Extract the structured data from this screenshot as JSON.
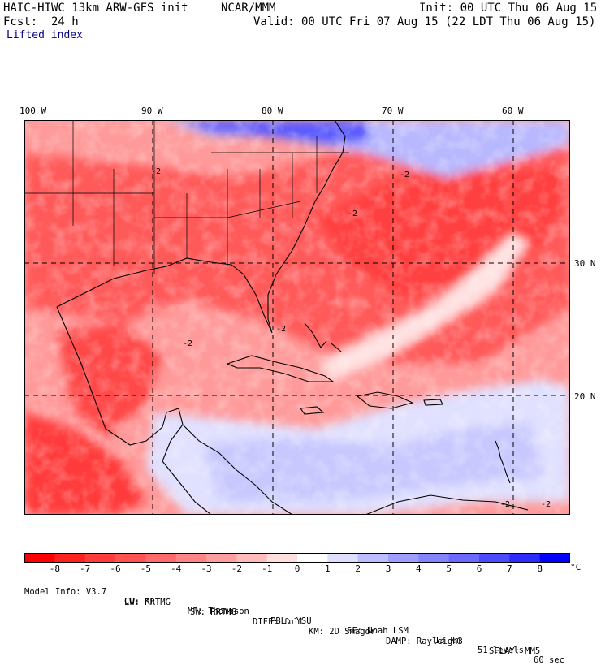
{
  "header": {
    "model": "HAIC-HIWC 13km ARW-GFS init",
    "org": "NCAR/MMM",
    "init": "Init: 00 UTC Thu 06 Aug 15",
    "fcst": "Fcst:  24 h",
    "valid": "Valid: 00 UTC Fri 07 Aug 15 (22 LDT Thu 06 Aug 15)",
    "field": "Lifted index"
  },
  "axes": {
    "lon_labels": [
      "100 W",
      "90 W",
      "80 W",
      "70 W",
      "60 W"
    ],
    "lat_labels": [
      "30 N",
      "20 N"
    ]
  },
  "contour_labels": [
    "-2",
    "-2",
    "-2",
    "-2",
    "-2",
    "-2",
    "-2"
  ],
  "colorbar": {
    "labels": [
      "-8",
      "-7",
      "-6",
      "-5",
      "-4",
      "-3",
      "-2",
      "-1",
      "0",
      "1",
      "2",
      "3",
      "4",
      "5",
      "6",
      "7",
      "8"
    ],
    "unit": "°C",
    "colors": [
      "#ff0000",
      "#ff2020",
      "#ff3c3c",
      "#ff5252",
      "#ff6a6a",
      "#ff8484",
      "#ff9e9e",
      "#ffbcbc",
      "#ffdede",
      "#ffffff",
      "#dedeff",
      "#bcbcff",
      "#9e9eff",
      "#8484ff",
      "#6a6aff",
      "#4c4cff",
      "#2c2cff",
      "#0000ff"
    ]
  },
  "model_info": {
    "line1": [
      "Model Info: V3.7",
      "CU: KF",
      "MP: Thompson",
      "PBL: YSU",
      "SF: Noah LSM",
      "13 km",
      "51 levels",
      "60 sec"
    ],
    "line2": [
      "LW: RRTMG",
      "SW: RRTMG",
      "DIFF: full",
      "KM: 2D Smagor",
      "DAMP: Rayleigh3",
      "SFLAY: MM5"
    ]
  }
}
